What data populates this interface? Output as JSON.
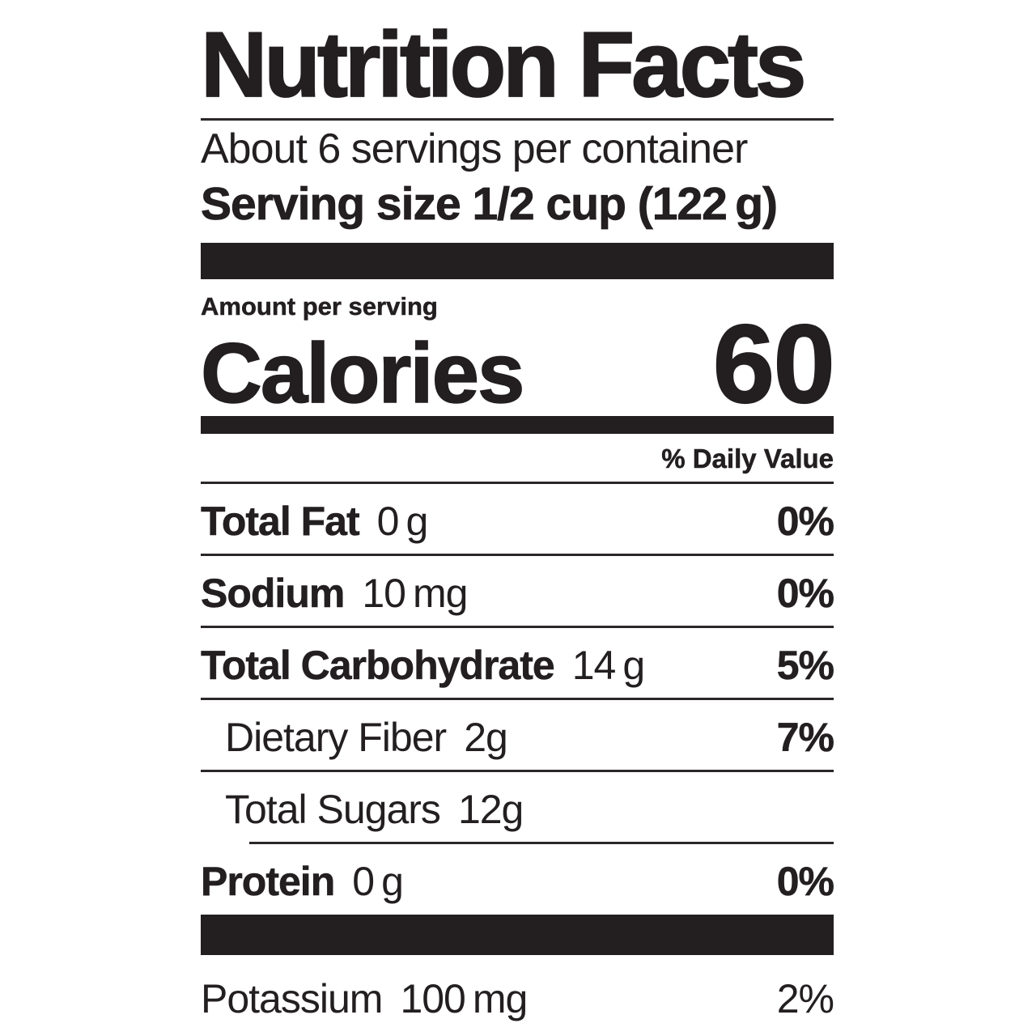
{
  "colors": {
    "ink": "#231f20",
    "rule": "#2b2728",
    "paper": "#ffffff"
  },
  "header": {
    "title": "Nutrition Facts",
    "servings_per_container": "About 6 servings per container",
    "serving_size": "Serving size 1/2 cup (122 g)"
  },
  "calories": {
    "section_label": "Amount per serving",
    "label": "Calories",
    "value": "60"
  },
  "daily_value_header": "% Daily Value",
  "nutrients": [
    {
      "name": "Total Fat",
      "amount": "0 g",
      "dv": "0%",
      "name_bold": true,
      "dv_bold": true,
      "indent": false,
      "divider": "full"
    },
    {
      "name": "Sodium",
      "amount": "10 mg",
      "dv": "0%",
      "name_bold": true,
      "dv_bold": true,
      "indent": false,
      "divider": "full"
    },
    {
      "name": "Total Carbohydrate",
      "amount": "14 g",
      "dv": "5%",
      "name_bold": true,
      "dv_bold": true,
      "indent": false,
      "divider": "full"
    },
    {
      "name": "Dietary Fiber",
      "amount": "2g",
      "dv": "7%",
      "name_bold": false,
      "dv_bold": true,
      "indent": true,
      "divider": "full"
    },
    {
      "name": "Total Sugars",
      "amount": "12g",
      "dv": "",
      "name_bold": false,
      "dv_bold": false,
      "indent": true,
      "divider": "inset"
    },
    {
      "name": "Protein",
      "amount": "0 g",
      "dv": "0%",
      "name_bold": true,
      "dv_bold": true,
      "indent": false,
      "divider": "none"
    }
  ],
  "footer_nutrients": [
    {
      "name": "Potassium",
      "amount": "100 mg",
      "dv": "2%",
      "name_bold": false,
      "dv_bold": false,
      "indent": false,
      "divider": "none"
    }
  ]
}
